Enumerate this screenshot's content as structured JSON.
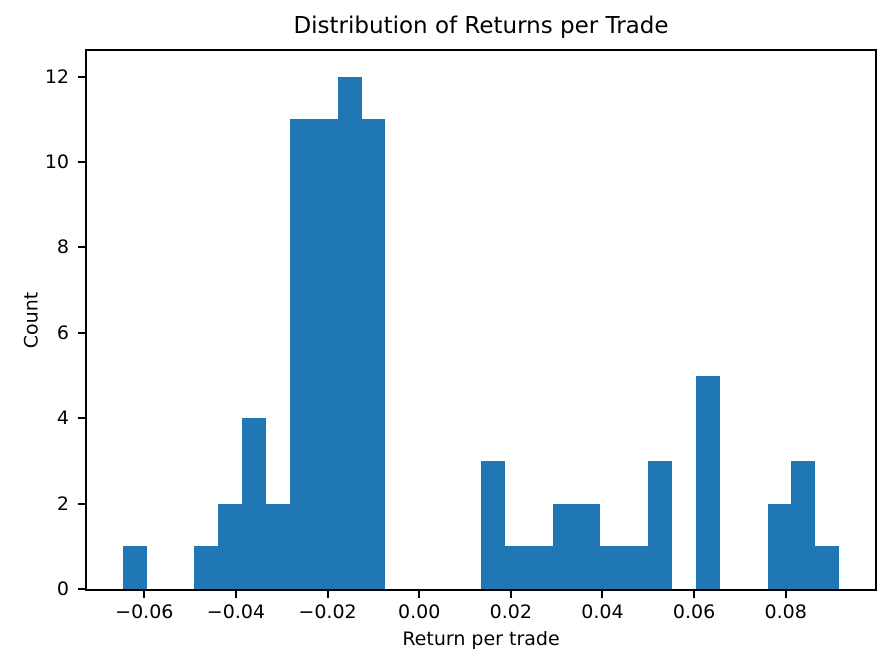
{
  "chart_data": {
    "type": "bar",
    "kind": "histogram",
    "title": "Distribution of Returns per Trade",
    "xlabel": "Return per trade",
    "ylabel": "Count",
    "bar_color": "#1f77b4",
    "axis_color": "#000000",
    "background_color": "#ffffff",
    "grid": false,
    "bins": 30,
    "bin_start": -0.0647,
    "bin_width": 0.005213,
    "counts": [
      1,
      0,
      0,
      1,
      2,
      4,
      2,
      11,
      11,
      12,
      11,
      0,
      0,
      0,
      0,
      3,
      1,
      1,
      2,
      2,
      1,
      1,
      3,
      0,
      5,
      0,
      0,
      2,
      3,
      1
    ],
    "xlim": [
      -0.0725,
      0.0995
    ],
    "ylim": [
      0,
      12.6
    ],
    "x_ticks": [
      {
        "value": -0.06,
        "label": "−0.06"
      },
      {
        "value": -0.04,
        "label": "−0.04"
      },
      {
        "value": -0.02,
        "label": "−0.02"
      },
      {
        "value": 0.0,
        "label": "0.00"
      },
      {
        "value": 0.02,
        "label": "0.02"
      },
      {
        "value": 0.04,
        "label": "0.04"
      },
      {
        "value": 0.06,
        "label": "0.06"
      },
      {
        "value": 0.08,
        "label": "0.08"
      }
    ],
    "y_ticks": [
      {
        "value": 0,
        "label": "0"
      },
      {
        "value": 2,
        "label": "2"
      },
      {
        "value": 4,
        "label": "4"
      },
      {
        "value": 6,
        "label": "6"
      },
      {
        "value": 8,
        "label": "8"
      },
      {
        "value": 10,
        "label": "10"
      },
      {
        "value": 12,
        "label": "12"
      }
    ]
  }
}
